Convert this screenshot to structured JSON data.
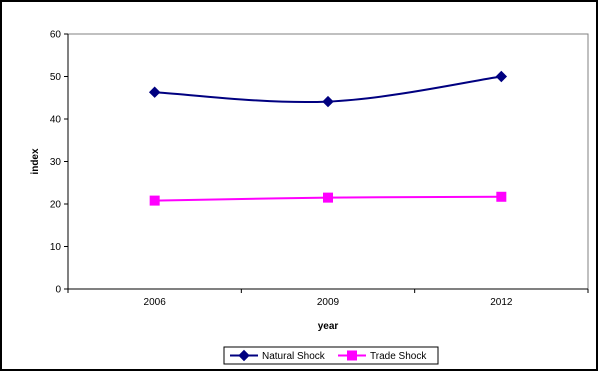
{
  "chart_data": {
    "type": "line",
    "title": "",
    "xlabel": "year",
    "ylabel": "index",
    "categories": [
      "2006",
      "2009",
      "2012"
    ],
    "ylim": [
      0,
      60
    ],
    "yticks": [
      0,
      10,
      20,
      30,
      40,
      50,
      60
    ],
    "grid": false,
    "legend_position": "bottom-center",
    "series": [
      {
        "name": "Natural Shock",
        "values": [
          46.3,
          44.1,
          50.0
        ],
        "color": "#000080",
        "marker": "diamond"
      },
      {
        "name": "Trade Shock",
        "values": [
          20.8,
          21.5,
          21.7
        ],
        "color": "#ff00ff",
        "marker": "square"
      }
    ]
  }
}
